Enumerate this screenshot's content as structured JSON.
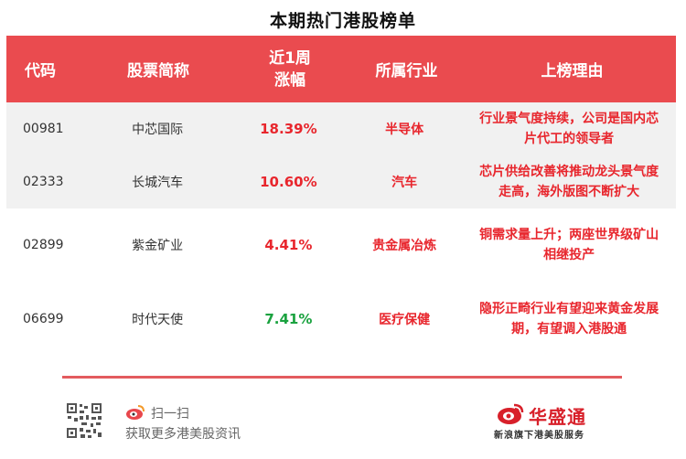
{
  "page_title": "本期热门港股榜单",
  "table": {
    "headers": {
      "code": "代码",
      "name": "股票简称",
      "change_line1": "近1周",
      "change_line2": "涨幅",
      "industry": "所属行业",
      "reason": "上榜理由"
    },
    "rows": [
      {
        "code": "00981",
        "name": "中芯国际",
        "change": "18.39%",
        "change_color": "#e8262d",
        "industry": "半导体",
        "reason_l1": "行业景气度持续，公司是国内芯",
        "reason_l2": "片代工的领导者"
      },
      {
        "code": "02333",
        "name": "长城汽车",
        "change": "10.60%",
        "change_color": "#e8262d",
        "industry": "汽车",
        "reason_l1": "芯片供给改善将推动龙头景气度",
        "reason_l2": "走高，海外版图不断扩大"
      },
      {
        "code": "02899",
        "name": "紫金矿业",
        "change": "4.41%",
        "change_color": "#e8262d",
        "industry": "贵金属冶炼",
        "reason_l1": "铜需求量上升；两座世界级矿山",
        "reason_l2": "相继投产"
      },
      {
        "code": "06699",
        "name": "时代天使",
        "change": "7.41%",
        "change_color": "#1aa23f",
        "industry": "医疗保健",
        "reason_l1": "隐形正畸行业有望迎来黄金发展",
        "reason_l2": "期，有望调入港股通"
      }
    ]
  },
  "footer": {
    "scan_label": "扫一扫",
    "subtitle": "获取更多港美股资讯",
    "brand_name": "华盛通",
    "brand_tagline": "新浪旗下港美股服务"
  },
  "colors": {
    "header_bg": "#ea4b4f",
    "accent_red": "#e8262d",
    "accent_green": "#1aa23f"
  }
}
